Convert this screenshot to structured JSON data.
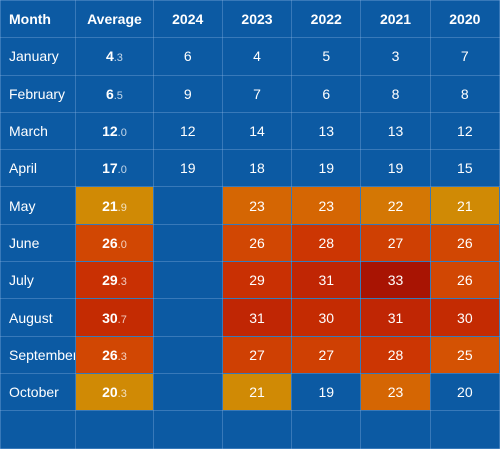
{
  "colors": {
    "background": "#0c5aa3",
    "warm_21": "#d08a05",
    "warm_22": "#d47704",
    "warm_23": "#d56603",
    "warm_25": "#d45203",
    "warm_26": "#d14703",
    "warm_27": "#cf4003",
    "warm_28": "#cc3603",
    "warm_29": "#c93003",
    "warm_30": "#c42b02",
    "warm_31": "#c02604",
    "warm_33": "#a81403"
  },
  "table": {
    "headers": [
      "Month",
      "Average",
      "2024",
      "2023",
      "2022",
      "2021",
      "2020"
    ],
    "rows": [
      {
        "month": "January",
        "avg_int": "4",
        "avg_dec": ".3",
        "avg_bg": "",
        "values": [
          "6",
          "4",
          "5",
          "3",
          "7"
        ],
        "bgs": [
          "",
          "",
          "",
          "",
          ""
        ]
      },
      {
        "month": "February",
        "avg_int": "6",
        "avg_dec": ".5",
        "avg_bg": "",
        "values": [
          "9",
          "7",
          "6",
          "8",
          "8"
        ],
        "bgs": [
          "",
          "",
          "",
          "",
          ""
        ]
      },
      {
        "month": "March",
        "avg_int": "12",
        "avg_dec": ".0",
        "avg_bg": "",
        "values": [
          "12",
          "14",
          "13",
          "13",
          "12"
        ],
        "bgs": [
          "",
          "",
          "",
          "",
          ""
        ]
      },
      {
        "month": "April",
        "avg_int": "17",
        "avg_dec": ".0",
        "avg_bg": "",
        "values": [
          "19",
          "18",
          "19",
          "19",
          "15"
        ],
        "bgs": [
          "",
          "",
          "",
          "",
          ""
        ]
      },
      {
        "month": "May",
        "avg_int": "21",
        "avg_dec": ".9",
        "avg_bg": "#d08a05",
        "values": [
          "",
          "23",
          "23",
          "22",
          "21"
        ],
        "bgs": [
          "",
          "#d56603",
          "#d56603",
          "#d47704",
          "#d08a05"
        ]
      },
      {
        "month": "June",
        "avg_int": "26",
        "avg_dec": ".0",
        "avg_bg": "#d14703",
        "values": [
          "",
          "26",
          "28",
          "27",
          "26"
        ],
        "bgs": [
          "",
          "#d14703",
          "#cc3603",
          "#cf4003",
          "#d14703"
        ]
      },
      {
        "month": "July",
        "avg_int": "29",
        "avg_dec": ".3",
        "avg_bg": "#c93003",
        "values": [
          "",
          "29",
          "31",
          "33",
          "26"
        ],
        "bgs": [
          "",
          "#c93003",
          "#c02604",
          "#a81403",
          "#d14703"
        ]
      },
      {
        "month": "August",
        "avg_int": "30",
        "avg_dec": ".7",
        "avg_bg": "#c42b02",
        "values": [
          "",
          "31",
          "30",
          "31",
          "30"
        ],
        "bgs": [
          "",
          "#c02604",
          "#c42b02",
          "#c02604",
          "#c42b02"
        ]
      },
      {
        "month": "September",
        "avg_int": "26",
        "avg_dec": ".3",
        "avg_bg": "#d14703",
        "values": [
          "",
          "27",
          "27",
          "28",
          "25"
        ],
        "bgs": [
          "",
          "#cf4003",
          "#cf4003",
          "#cc3603",
          "#d45203"
        ]
      },
      {
        "month": "October",
        "avg_int": "20",
        "avg_dec": ".3",
        "avg_bg": "#d08a05",
        "values": [
          "",
          "21",
          "19",
          "23",
          "20"
        ],
        "bgs": [
          "",
          "#d08a05",
          "",
          "#d56603",
          ""
        ]
      },
      {
        "month": "",
        "avg_int": "",
        "avg_dec": "",
        "avg_bg": "",
        "values": [
          "",
          "",
          "",
          "",
          ""
        ],
        "bgs": [
          "",
          "",
          "",
          "",
          ""
        ]
      }
    ]
  }
}
